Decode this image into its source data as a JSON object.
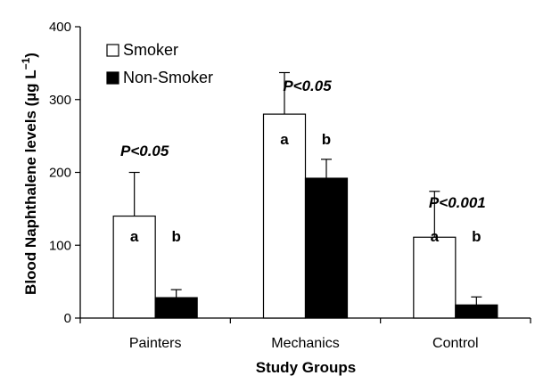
{
  "chart_data": {
    "type": "bar",
    "categories": [
      "Painters",
      "Mechanics",
      "Control"
    ],
    "series": [
      {
        "name": "Smoker",
        "values": [
          140,
          280,
          111
        ],
        "error": [
          60,
          57,
          63
        ],
        "color": "#ffffff"
      },
      {
        "name": "Non-Smoker",
        "values": [
          28,
          192,
          18
        ],
        "error": [
          11,
          26,
          11
        ],
        "color": "#000000"
      }
    ],
    "ylim": [
      0,
      400
    ],
    "yticks": [
      0,
      100,
      200,
      300,
      400
    ],
    "ylabel_main": "Blood Naphthalene levels (µg L",
    "ylabel_sup": "−1",
    "ylabel_close": ")",
    "xlabel": "Study Groups",
    "legend_position": "top-left",
    "annotations": {
      "pvalues": [
        "P<0.05",
        "P<0.05",
        "P<0.001"
      ],
      "smoker_letter": "a",
      "nonsmoker_letter": "b"
    }
  }
}
